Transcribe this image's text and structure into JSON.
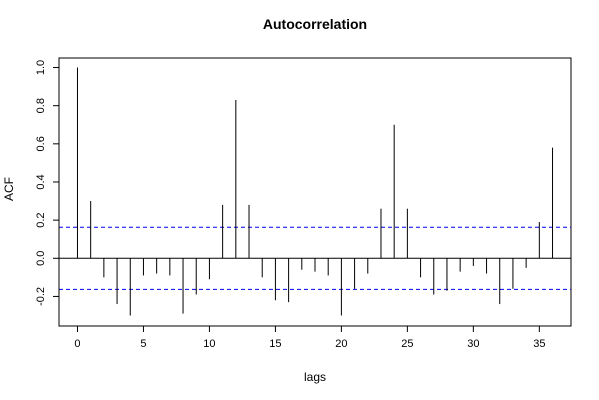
{
  "chart_data": {
    "type": "bar",
    "title": "Autocorrelation",
    "xlabel": "lags",
    "ylabel": "ACF",
    "xlim": [
      -1.4,
      37.4
    ],
    "ylim": [
      -0.355,
      1.05
    ],
    "x_ticks": [
      0,
      5,
      10,
      15,
      20,
      25,
      30,
      35
    ],
    "y_ticks": [
      -0.2,
      0.0,
      0.2,
      0.4,
      0.6,
      0.8,
      1.0
    ],
    "confidence_bounds": [
      0.163,
      -0.163
    ],
    "grid": false,
    "lags": [
      0,
      1,
      2,
      3,
      4,
      5,
      6,
      7,
      8,
      9,
      10,
      11,
      12,
      13,
      14,
      15,
      16,
      17,
      18,
      19,
      20,
      21,
      22,
      23,
      24,
      25,
      26,
      27,
      28,
      29,
      30,
      31,
      32,
      33,
      34,
      35,
      36
    ],
    "values": [
      1.0,
      0.3,
      -0.1,
      -0.24,
      -0.3,
      -0.09,
      -0.08,
      -0.09,
      -0.29,
      -0.19,
      -0.11,
      0.28,
      0.83,
      0.28,
      -0.1,
      -0.22,
      -0.23,
      -0.06,
      -0.07,
      -0.09,
      -0.3,
      -0.16,
      -0.08,
      0.26,
      0.7,
      0.26,
      -0.1,
      -0.19,
      -0.17,
      -0.07,
      -0.04,
      -0.08,
      -0.24,
      -0.16,
      -0.05,
      0.19,
      0.58
    ],
    "colors": {
      "bars": "#000000",
      "bounds": "#0000ff",
      "axes": "#000000"
    }
  }
}
